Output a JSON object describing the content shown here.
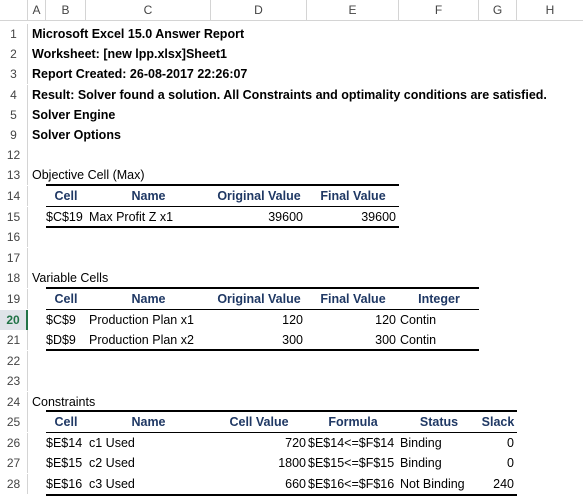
{
  "columns": [
    "A",
    "B",
    "C",
    "D",
    "E",
    "F",
    "G",
    "H"
  ],
  "row_numbers": [
    "1",
    "2",
    "3",
    "4",
    "5",
    "9",
    "12",
    "13",
    "14",
    "15",
    "16",
    "17",
    "18",
    "19",
    "20",
    "21",
    "22",
    "23",
    "24",
    "25",
    "26",
    "27",
    "28"
  ],
  "selected_row": "20",
  "title": "Microsoft Excel 15.0 Answer Report",
  "worksheet": "Worksheet: [new lpp.xlsx]Sheet1",
  "created": "Report Created: 26-08-2017 22:26:07",
  "result": "Result: Solver found a solution.  All Constraints and optimality conditions are satisfied.",
  "engine": "Solver Engine",
  "options": "Solver Options",
  "objective": {
    "section": "Objective Cell (Max)",
    "headers": [
      "Cell",
      "Name",
      "Original Value",
      "Final Value"
    ],
    "rows": [
      [
        "$C$19",
        "Max Profit Z x1",
        "39600",
        "39600"
      ]
    ]
  },
  "variables": {
    "section": "Variable Cells",
    "headers": [
      "Cell",
      "Name",
      "Original Value",
      "Final Value",
      "Integer"
    ],
    "rows": [
      [
        "$C$9",
        "Production Plan x1",
        "120",
        "120",
        "Contin"
      ],
      [
        "$D$9",
        "Production Plan x2",
        "300",
        "300",
        "Contin"
      ]
    ]
  },
  "constraints": {
    "section": "Constraints",
    "headers": [
      "Cell",
      "Name",
      "Cell Value",
      "Formula",
      "Status",
      "Slack"
    ],
    "rows": [
      [
        "$E$14",
        "c1 Used",
        "720",
        "$E$14<=$F$14",
        "Binding",
        "0"
      ],
      [
        "$E$15",
        "c2 Used",
        "1800",
        "$E$15<=$F$15",
        "Binding",
        "0"
      ],
      [
        "$E$16",
        "c3 Used",
        "660",
        "$E$16<=$F$16",
        "Not Binding",
        "240"
      ]
    ]
  }
}
